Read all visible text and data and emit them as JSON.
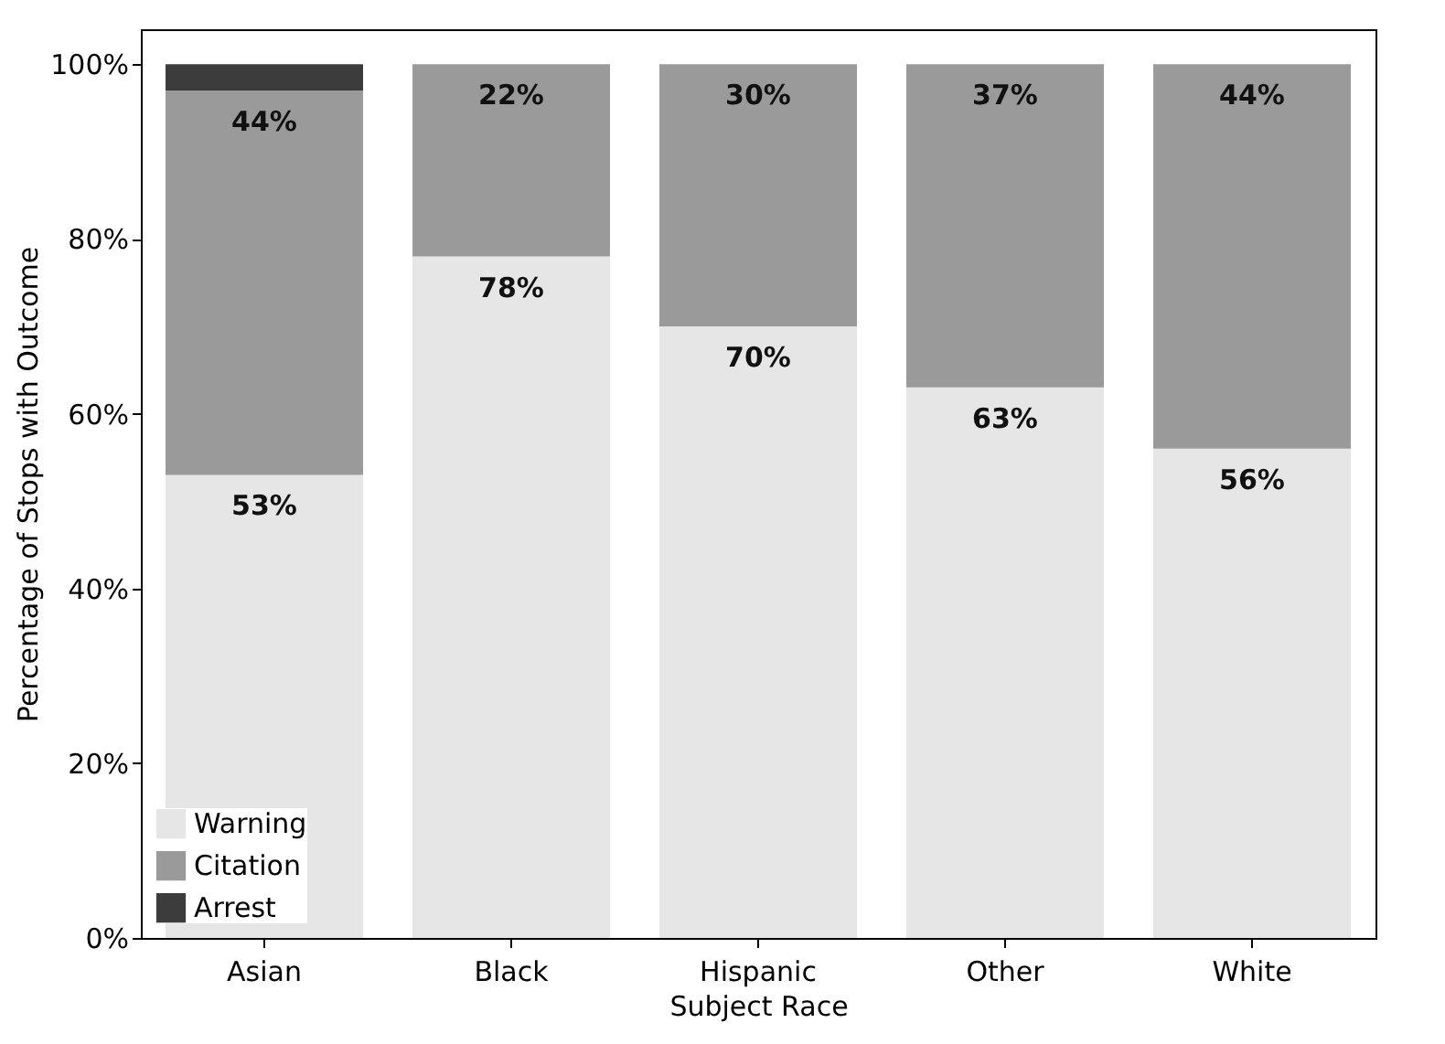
{
  "chart_data": {
    "type": "bar",
    "stacked": true,
    "xlabel": "Subject Race",
    "ylabel": "Percentage of Stops with Outcome",
    "categories": [
      "Asian",
      "Black",
      "Hispanic",
      "Other",
      "White"
    ],
    "series": [
      {
        "name": "Warning",
        "color": "#e6e6e6",
        "values": [
          53,
          78,
          70,
          63,
          56
        ],
        "value_labels": [
          "53%",
          "78%",
          "70%",
          "63%",
          "56%"
        ]
      },
      {
        "name": "Citation",
        "color": "#9a9a9a",
        "values": [
          44,
          22,
          30,
          37,
          44
        ],
        "value_labels": [
          "44%",
          "22%",
          "30%",
          "37%",
          "44%"
        ]
      },
      {
        "name": "Arrest",
        "color": "#3c3c3c",
        "values": [
          3,
          null,
          null,
          null,
          null
        ]
      }
    ],
    "ylim": [
      0,
      104
    ],
    "yticks": [
      {
        "value": 0,
        "label": "0%"
      },
      {
        "value": 20,
        "label": "20%"
      },
      {
        "value": 40,
        "label": "40%"
      },
      {
        "value": 60,
        "label": "60%"
      },
      {
        "value": 80,
        "label": "80%"
      },
      {
        "value": 100,
        "label": "100%"
      }
    ],
    "legend": "bottom left",
    "grid": false
  }
}
